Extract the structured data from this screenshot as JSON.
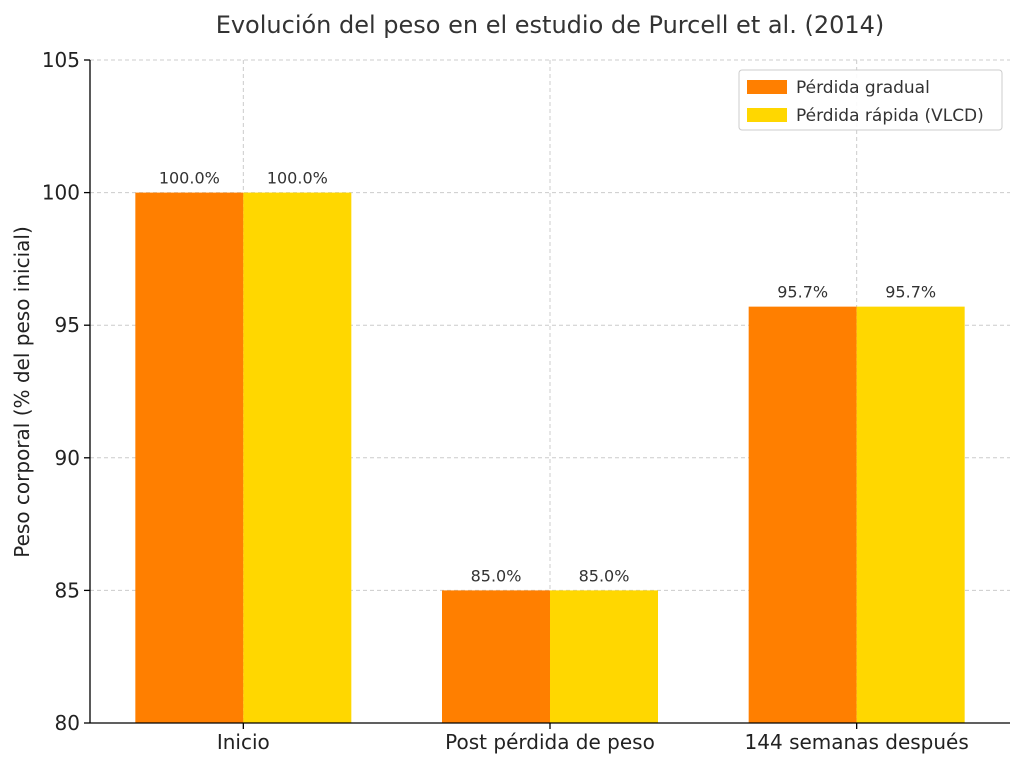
{
  "chart_data": {
    "type": "bar",
    "title": "Evolución del peso en el estudio de Purcell et al. (2014)",
    "xlabel": "",
    "ylabel": "Peso corporal (% del peso inicial)",
    "categories": [
      "Inicio",
      "Post pérdida de peso",
      "144 semanas después"
    ],
    "series": [
      {
        "name": "Pérdida gradual",
        "color": "#ff7f00",
        "values": [
          100.0,
          85.0,
          95.7
        ],
        "labels": [
          "100.0%",
          "85.0%",
          "95.7%"
        ]
      },
      {
        "name": "Pérdida rápida (VLCD)",
        "color": "#ffd700",
        "values": [
          100.0,
          85.0,
          95.7
        ],
        "labels": [
          "100.0%",
          "85.0%",
          "95.7%"
        ]
      }
    ],
    "ylim": [
      80,
      105
    ],
    "yticks": [
      80,
      85,
      90,
      95,
      100,
      105
    ],
    "ytick_labels": [
      "80",
      "85",
      "90",
      "95",
      "100",
      "105"
    ],
    "grid": true,
    "legend_position": "top-right"
  }
}
